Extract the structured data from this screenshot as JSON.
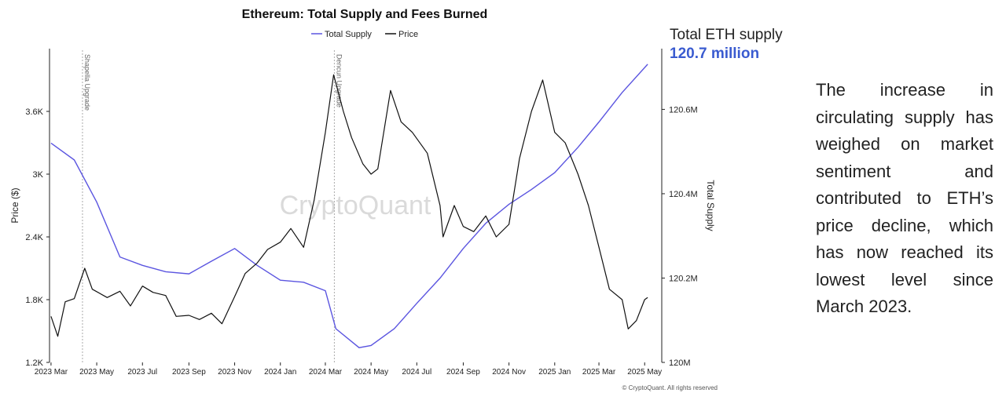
{
  "chart_data": {
    "type": "line",
    "title": "Ethereum: Total Supply and Fees Burned",
    "legend": [
      "Total Supply",
      "Price"
    ],
    "legend_placement": "top-center",
    "ylabel_left": "Price ($)",
    "ylabel_right": "Total Supply",
    "yticks_left": [
      "1.2K",
      "1.8K",
      "2.4K",
      "3K",
      "3.6K"
    ],
    "yticks_right": [
      "120M",
      "120.2M",
      "120.4M",
      "120.6M"
    ],
    "xticks": [
      "2023 Mar",
      "2023 May",
      "2023 Jul",
      "2023 Sep",
      "2023 Nov",
      "2024 Jan",
      "2024 Mar",
      "2024 May",
      "2024 Jul",
      "2024 Sep",
      "2024 Nov",
      "2025 Jan",
      "2025 Mar",
      "2025 May"
    ],
    "ylim_left": [
      1200,
      4200
    ],
    "ylim_right": [
      120000000,
      120744000
    ],
    "events": [
      "Shapella Upgrade",
      "Dencun Upgrade"
    ],
    "watermark": "CryptoQuant",
    "credit": "© CryptoQuant. All rights reserved",
    "colors": {
      "supply": "#5b55e0",
      "price": "#111111",
      "event_line": "#aaaaaa"
    },
    "series": [
      {
        "name": "Price",
        "x": [
          "2023-03-01",
          "2023-03-10",
          "2023-03-20",
          "2023-04-01",
          "2023-04-15",
          "2023-04-25",
          "2023-05-15",
          "2023-06-01",
          "2023-06-15",
          "2023-07-01",
          "2023-07-15",
          "2023-08-01",
          "2023-08-15",
          "2023-09-01",
          "2023-09-15",
          "2023-10-01",
          "2023-10-15",
          "2023-11-01",
          "2023-11-15",
          "2023-12-01",
          "2023-12-15",
          "2024-01-01",
          "2024-01-15",
          "2024-02-01",
          "2024-02-15",
          "2024-03-01",
          "2024-03-12",
          "2024-03-25",
          "2024-04-05",
          "2024-04-20",
          "2024-05-01",
          "2024-05-10",
          "2024-05-27",
          "2024-06-10",
          "2024-06-25",
          "2024-07-15",
          "2024-08-01",
          "2024-08-05",
          "2024-08-20",
          "2024-09-01",
          "2024-09-15",
          "2024-10-01",
          "2024-10-15",
          "2024-11-01",
          "2024-11-15",
          "2024-12-01",
          "2024-12-16",
          "2025-01-01",
          "2025-01-15",
          "2025-02-01",
          "2025-02-15",
          "2025-03-01",
          "2025-03-15",
          "2025-04-01",
          "2025-04-09",
          "2025-04-20",
          "2025-05-01",
          "2025-05-05"
        ],
        "values": [
          1640,
          1450,
          1780,
          1810,
          2100,
          1900,
          1820,
          1880,
          1740,
          1930,
          1870,
          1840,
          1640,
          1650,
          1610,
          1670,
          1570,
          1830,
          2050,
          2150,
          2280,
          2350,
          2480,
          2300,
          2750,
          3400,
          3950,
          3600,
          3350,
          3100,
          3000,
          3050,
          3800,
          3500,
          3400,
          3200,
          2700,
          2400,
          2700,
          2500,
          2450,
          2600,
          2400,
          2520,
          3150,
          3600,
          3900,
          3400,
          3300,
          3000,
          2700,
          2300,
          1900,
          1800,
          1520,
          1600,
          1800,
          1820
        ]
      },
      {
        "name": "Total Supply",
        "x": [
          "2023-03-01",
          "2023-04-01",
          "2023-05-01",
          "2023-06-01",
          "2023-07-01",
          "2023-08-01",
          "2023-09-01",
          "2023-10-01",
          "2023-11-01",
          "2023-12-01",
          "2024-01-01",
          "2024-02-01",
          "2024-03-01",
          "2024-03-15",
          "2024-04-15",
          "2024-05-01",
          "2024-06-01",
          "2024-07-01",
          "2024-08-01",
          "2024-09-01",
          "2024-10-01",
          "2024-11-01",
          "2024-12-01",
          "2025-01-01",
          "2025-02-01",
          "2025-03-01",
          "2025-04-01",
          "2025-05-05"
        ],
        "values": [
          120520000,
          120480000,
          120380000,
          120250000,
          120230000,
          120215000,
          120210000,
          120240000,
          120270000,
          120230000,
          120195000,
          120190000,
          120170000,
          120080000,
          120035000,
          120040000,
          120080000,
          120140000,
          120200000,
          120270000,
          120330000,
          120375000,
          120410000,
          120450000,
          120510000,
          120570000,
          120640000,
          120707000
        ]
      }
    ]
  },
  "side_panel": {
    "supply_title": "Total ETH supply",
    "supply_value": "120.7 million",
    "description": "The increase in circulating supply has weighed on market sentiment and contributed to ETH’s price decline, which has now reached its lowest level since March 2023."
  }
}
